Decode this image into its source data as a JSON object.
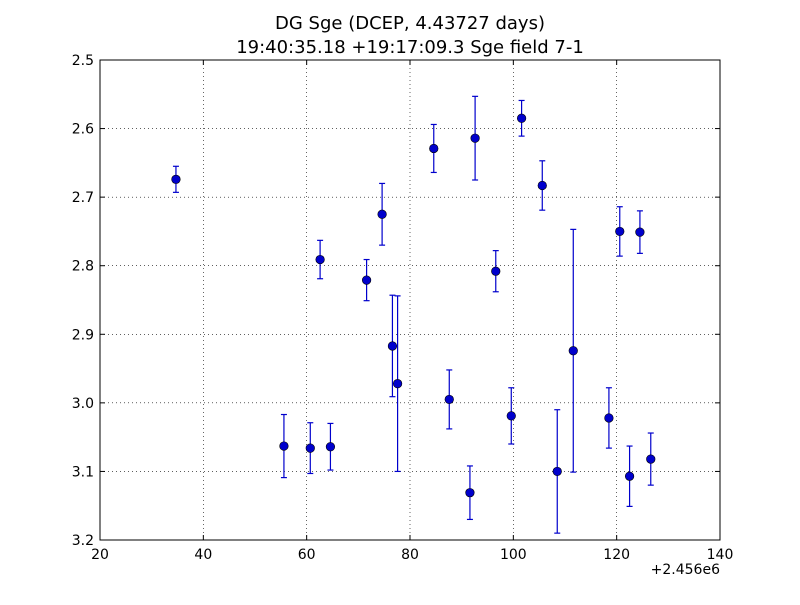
{
  "chart_data": {
    "type": "scatter",
    "title": "DG Sge (DCEP, 4.43727 days)",
    "subtitle": "19:40:35.18 +19:17:09.3 Sge field 7-1",
    "xlabel": "",
    "ylabel": "",
    "x_offset_label": "+2.456e6",
    "xlim": [
      20,
      140
    ],
    "ylim": [
      3.2,
      2.5
    ],
    "y_inverted": true,
    "grid": true,
    "x_ticks": [
      "20",
      "40",
      "60",
      "80",
      "100",
      "120",
      "140"
    ],
    "y_ticks": [
      "2.5",
      "2.6",
      "2.7",
      "2.8",
      "2.9",
      "3.0",
      "3.1",
      "3.2"
    ],
    "series": [
      {
        "color": "#0000cc",
        "points": [
          {
            "x": 34.7,
            "y": 2.674,
            "err": 0.019
          },
          {
            "x": 55.6,
            "y": 3.063,
            "err": 0.046
          },
          {
            "x": 60.7,
            "y": 3.066,
            "err": 0.037
          },
          {
            "x": 62.6,
            "y": 2.791,
            "err": 0.028
          },
          {
            "x": 64.6,
            "y": 3.064,
            "err": 0.034
          },
          {
            "x": 71.6,
            "y": 2.821,
            "err": 0.03
          },
          {
            "x": 74.6,
            "y": 2.725,
            "err": 0.045
          },
          {
            "x": 76.6,
            "y": 2.917,
            "err": 0.074
          },
          {
            "x": 77.6,
            "y": 2.972,
            "err": 0.128
          },
          {
            "x": 84.6,
            "y": 2.629,
            "err": 0.035
          },
          {
            "x": 87.6,
            "y": 2.995,
            "err": 0.043
          },
          {
            "x": 91.6,
            "y": 3.131,
            "err": 0.039
          },
          {
            "x": 92.6,
            "y": 2.614,
            "err": 0.061
          },
          {
            "x": 96.6,
            "y": 2.808,
            "err": 0.03
          },
          {
            "x": 99.6,
            "y": 3.019,
            "err": 0.041
          },
          {
            "x": 101.6,
            "y": 2.585,
            "err": 0.026
          },
          {
            "x": 105.6,
            "y": 2.683,
            "err": 0.036
          },
          {
            "x": 108.5,
            "y": 3.1,
            "err": 0.09
          },
          {
            "x": 111.6,
            "y": 2.924,
            "err": 0.177
          },
          {
            "x": 118.5,
            "y": 3.022,
            "err": 0.044
          },
          {
            "x": 120.6,
            "y": 2.75,
            "err": 0.036
          },
          {
            "x": 122.5,
            "y": 3.107,
            "err": 0.044
          },
          {
            "x": 124.5,
            "y": 2.751,
            "err": 0.031
          },
          {
            "x": 126.6,
            "y": 3.082,
            "err": 0.038
          }
        ]
      }
    ]
  }
}
